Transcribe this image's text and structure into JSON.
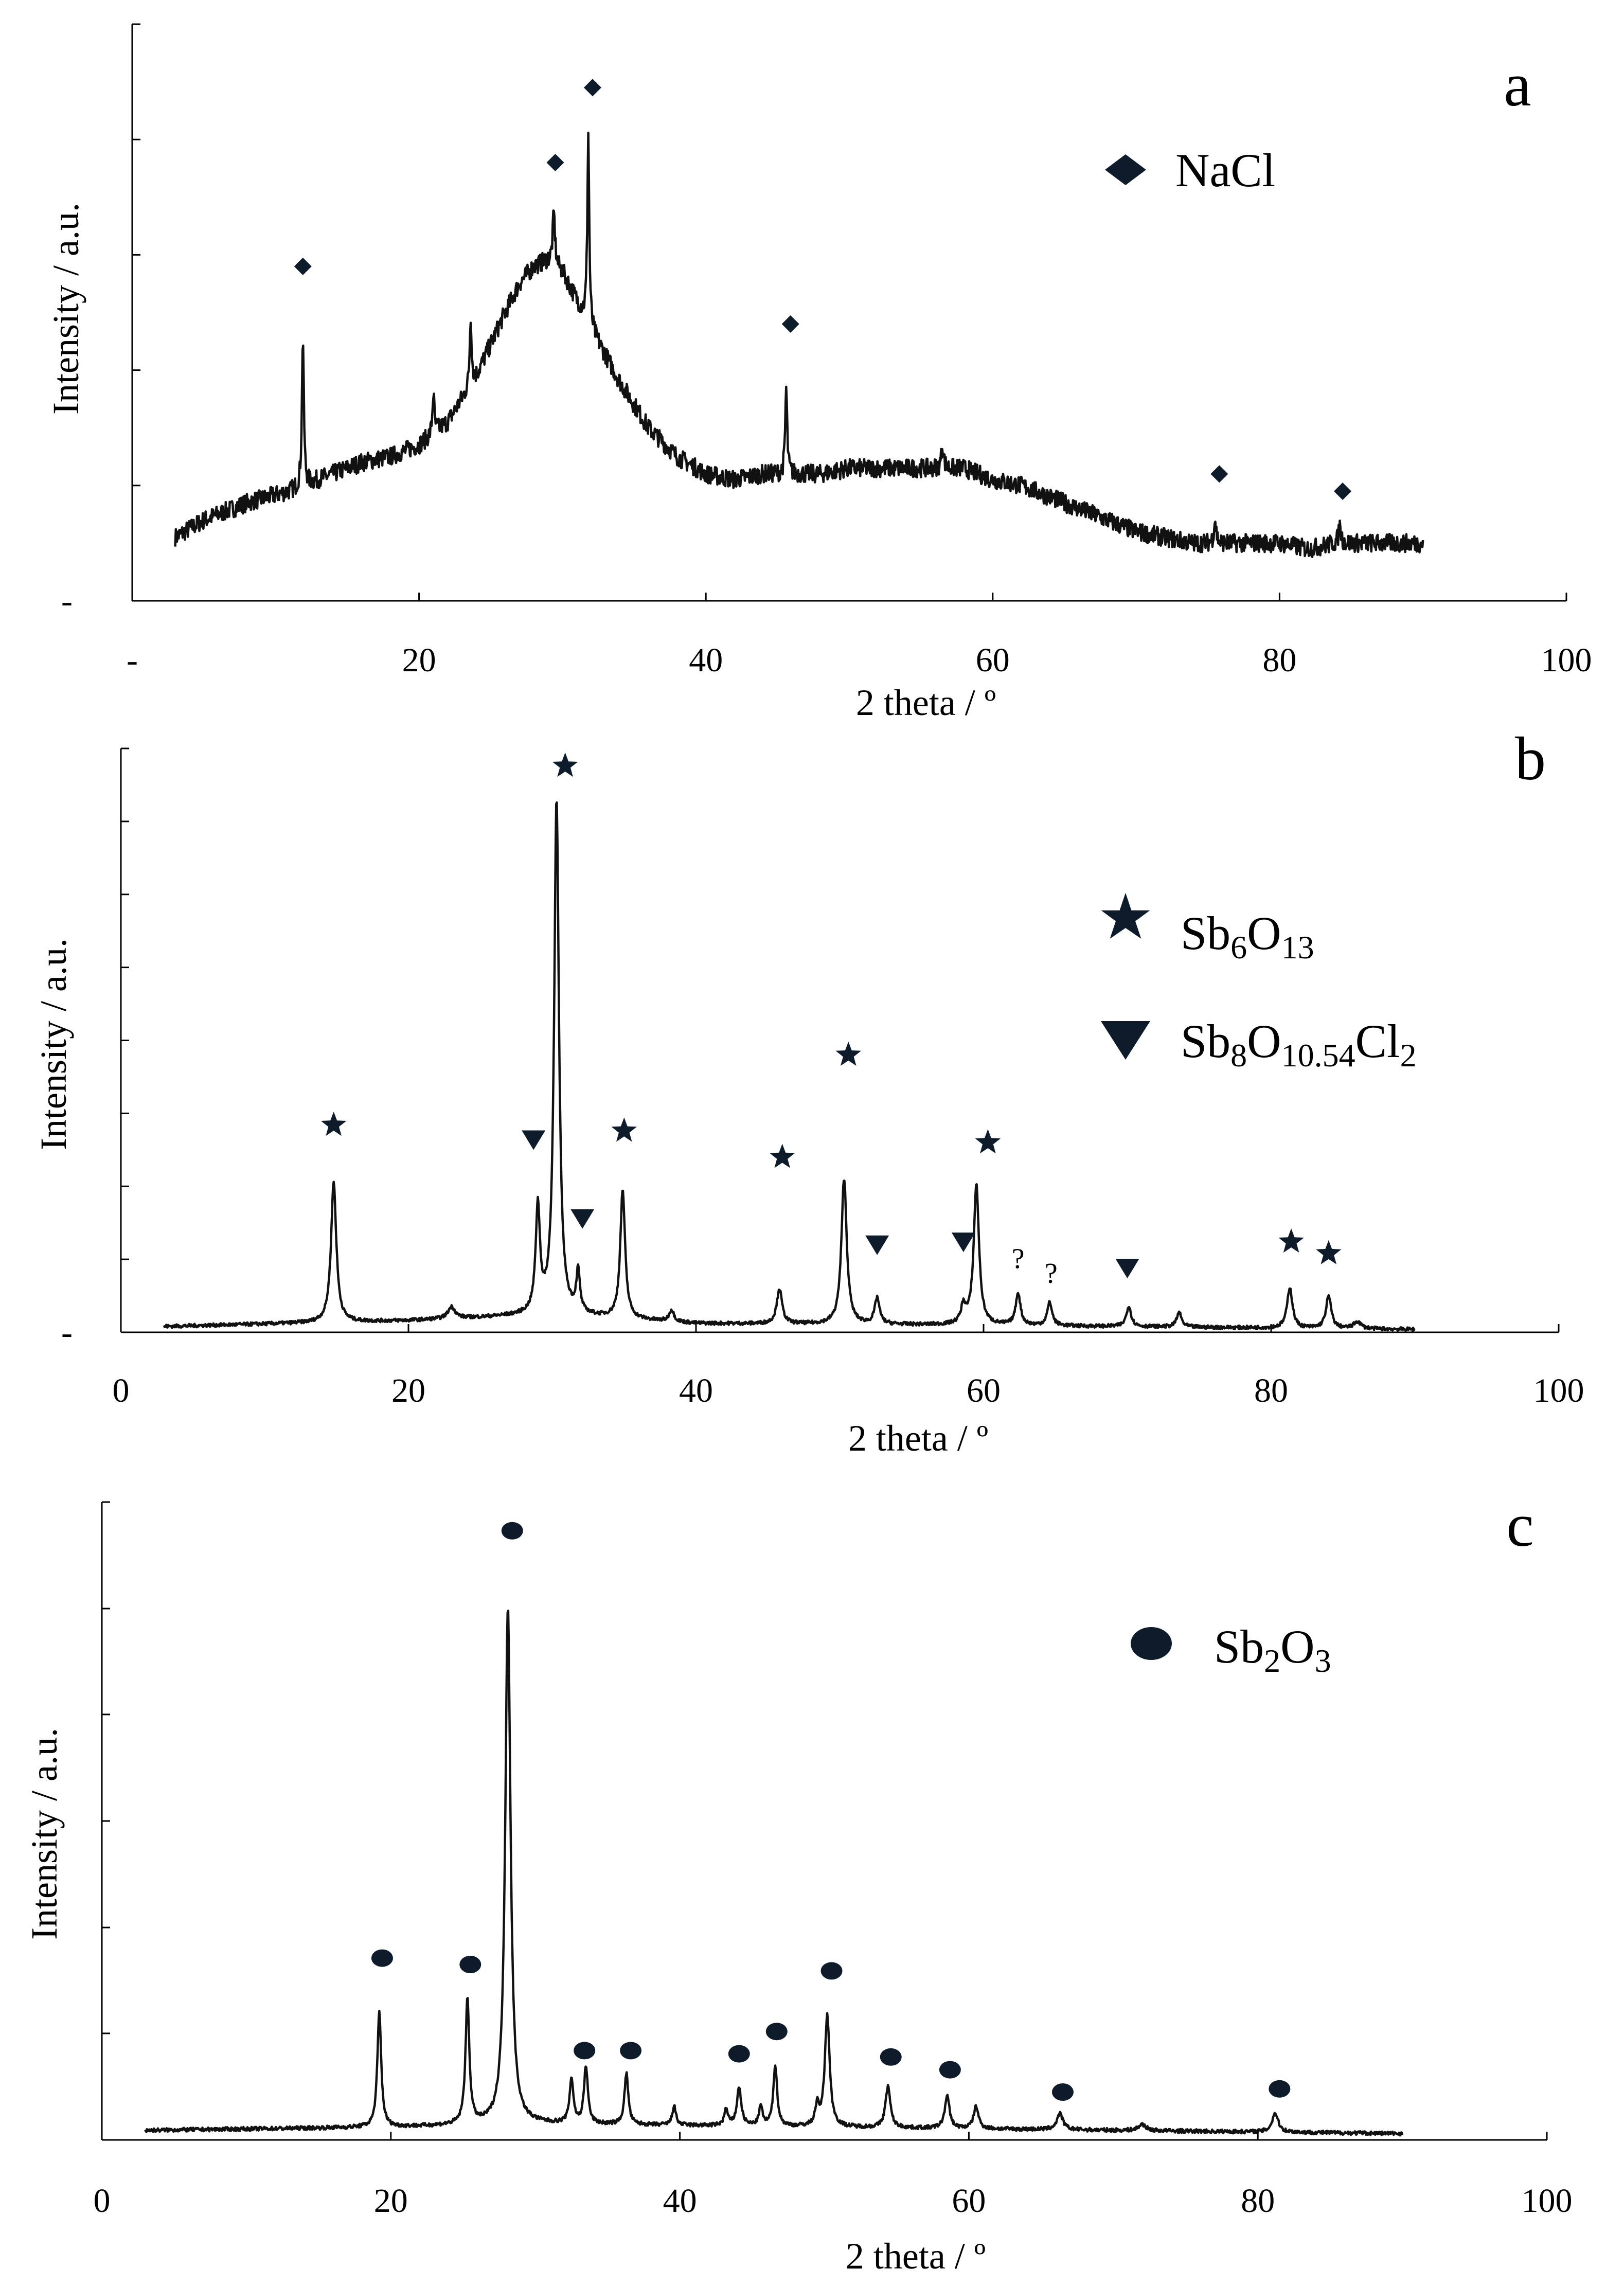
{
  "chart_data": [
    {
      "type": "line",
      "panel_label": "a",
      "xlabel": "2 theta / º",
      "ylabel": "Intensity / a.u.",
      "xlim": [
        0,
        100
      ],
      "ylim": [
        0,
        100
      ],
      "x_tick_labels": [
        "-",
        "20",
        "40",
        "60",
        "80",
        "100"
      ],
      "y_tick_labels": [
        "-"
      ],
      "y_ticks": [
        20,
        40,
        60,
        80,
        100
      ],
      "legend": [
        {
          "marker": "diamond",
          "label": "NaCl"
        }
      ],
      "baseline": [
        [
          3,
          11
        ],
        [
          5,
          14
        ],
        [
          8,
          17
        ],
        [
          11,
          19
        ],
        [
          12,
          20
        ],
        [
          14,
          22
        ],
        [
          16,
          24
        ],
        [
          18,
          25
        ],
        [
          20,
          27
        ],
        [
          22,
          31
        ],
        [
          24,
          39
        ],
        [
          26,
          50
        ],
        [
          27,
          55
        ],
        [
          28,
          58
        ],
        [
          29,
          59
        ],
        [
          30,
          57
        ],
        [
          31,
          52
        ],
        [
          32,
          47
        ],
        [
          34,
          38
        ],
        [
          36,
          30
        ],
        [
          38,
          25
        ],
        [
          40,
          22
        ],
        [
          42,
          21
        ],
        [
          44,
          22
        ],
        [
          46,
          22
        ],
        [
          48,
          22
        ],
        [
          50,
          23
        ],
        [
          52,
          23
        ],
        [
          54,
          23
        ],
        [
          56,
          23
        ],
        [
          58,
          23
        ],
        [
          60,
          21
        ],
        [
          62,
          20
        ],
        [
          64,
          18
        ],
        [
          66,
          16
        ],
        [
          68,
          14
        ],
        [
          70,
          12
        ],
        [
          72,
          11
        ],
        [
          74,
          10
        ],
        [
          76,
          10
        ],
        [
          78,
          10
        ],
        [
          80,
          10
        ],
        [
          82,
          9
        ],
        [
          84,
          10
        ],
        [
          86,
          10
        ],
        [
          88,
          10
        ],
        [
          90,
          10
        ]
      ],
      "peaks": [
        [
          11.9,
          26,
          0.08
        ],
        [
          21,
          7,
          0.08
        ],
        [
          23.6,
          12,
          0.08
        ],
        [
          29.4,
          9,
          0.1
        ],
        [
          31.8,
          33,
          0.08
        ],
        [
          45.6,
          15,
          0.08
        ],
        [
          56.5,
          4,
          0.1
        ],
        [
          75.5,
          4,
          0.1
        ],
        [
          84.2,
          3,
          0.1
        ]
      ],
      "noise": 1.6,
      "markers": [
        {
          "symbol": "diamond",
          "x": 11.9,
          "y": 58
        },
        {
          "symbol": "diamond",
          "x": 29.5,
          "y": 76
        },
        {
          "symbol": "diamond",
          "x": 32.1,
          "y": 89
        },
        {
          "symbol": "diamond",
          "x": 45.9,
          "y": 48
        },
        {
          "symbol": "diamond",
          "x": 75.8,
          "y": 22
        },
        {
          "symbol": "diamond",
          "x": 84.4,
          "y": 19
        }
      ]
    },
    {
      "type": "line",
      "panel_label": "b",
      "xlabel": "2 theta / º",
      "ylabel": "Intensity / a.u.",
      "xlim": [
        0,
        100
      ],
      "ylim": [
        0,
        100
      ],
      "x_tick_labels": [
        "0",
        "20",
        "40",
        "60",
        "80",
        "100"
      ],
      "y_tick_labels": [
        "-"
      ],
      "y_ticks": [
        12.5,
        25,
        37.5,
        50,
        62.5,
        75,
        87.5,
        100
      ],
      "legend": [
        {
          "marker": "star",
          "label": "Sb",
          "sub1": "6",
          "mid": "O",
          "sub2": "13",
          "tail": "",
          "sub3": ""
        },
        {
          "marker": "triangle-down",
          "label": "Sb",
          "sub1": "8",
          "mid": "O",
          "sub2": "10.54",
          "tail": "Cl",
          "sub3": "2"
        }
      ],
      "baseline": [
        [
          3,
          1
        ],
        [
          20,
          2
        ],
        [
          30,
          3
        ],
        [
          40,
          1.5
        ],
        [
          60,
          1.2
        ],
        [
          90,
          0.5
        ]
      ],
      "peaks": [
        [
          14.8,
          24,
          0.22
        ],
        [
          23,
          2,
          0.3
        ],
        [
          29,
          18,
          0.18
        ],
        [
          30.3,
          88,
          0.2
        ],
        [
          31.8,
          7,
          0.15
        ],
        [
          34.9,
          22,
          0.2
        ],
        [
          38.3,
          2,
          0.2
        ],
        [
          45.8,
          6,
          0.22
        ],
        [
          50.3,
          25,
          0.22
        ],
        [
          52.6,
          4.5,
          0.2
        ],
        [
          59.5,
          24,
          0.22
        ],
        [
          58.6,
          3,
          0.2
        ],
        [
          62.4,
          5.5,
          0.2
        ],
        [
          64.6,
          4,
          0.2
        ],
        [
          70.1,
          3.5,
          0.2
        ],
        [
          73.6,
          2.5,
          0.2
        ],
        [
          81.3,
          7,
          0.22
        ],
        [
          84,
          5.5,
          0.22
        ],
        [
          86,
          1.2,
          0.3
        ]
      ],
      "noise": 0.3,
      "markers": [
        {
          "symbol": "star",
          "x": 14.8,
          "y": 35.5
        },
        {
          "symbol": "star",
          "x": 30.9,
          "y": 97
        },
        {
          "symbol": "star",
          "x": 35.0,
          "y": 34.5
        },
        {
          "symbol": "star",
          "x": 46.0,
          "y": 30
        },
        {
          "symbol": "star",
          "x": 50.6,
          "y": 47.5
        },
        {
          "symbol": "star",
          "x": 60.3,
          "y": 32.5
        },
        {
          "symbol": "star",
          "x": 81.4,
          "y": 15.5
        },
        {
          "symbol": "star",
          "x": 84.0,
          "y": 13.5
        },
        {
          "symbol": "triangle-down",
          "x": 28.7,
          "y": 33
        },
        {
          "symbol": "triangle-down",
          "x": 32.1,
          "y": 19.5
        },
        {
          "symbol": "triangle-down",
          "x": 52.6,
          "y": 15
        },
        {
          "symbol": "triangle-down",
          "x": 58.6,
          "y": 15.5
        },
        {
          "symbol": "triangle-down",
          "x": 70.0,
          "y": 11
        }
      ],
      "unknown_labels": [
        {
          "text": "?",
          "x": 62.4,
          "y": 11
        },
        {
          "text": "?",
          "x": 64.7,
          "y": 8.5
        }
      ]
    },
    {
      "type": "line",
      "panel_label": "c",
      "xlabel": "2 theta / º",
      "ylabel": "Intensity / a.u.",
      "xlim": [
        0,
        100
      ],
      "ylim": [
        0,
        100
      ],
      "x_tick_labels": [
        "0",
        "20",
        "40",
        "60",
        "80",
        "100"
      ],
      "y_tick_labels": [],
      "y_ticks": [
        16.7,
        33.3,
        50,
        66.7,
        83.3,
        100
      ],
      "legend": [
        {
          "marker": "ellipse",
          "label": "Sb",
          "sub1": "2",
          "mid": "O",
          "sub2": "3",
          "tail": "",
          "sub3": ""
        }
      ],
      "baseline": [
        [
          3,
          1.5
        ],
        [
          20,
          2
        ],
        [
          30,
          2.5
        ],
        [
          50,
          2
        ],
        [
          70,
          1.5
        ],
        [
          90,
          1
        ]
      ],
      "peaks": [
        [
          19.2,
          18,
          0.16
        ],
        [
          25.3,
          19.5,
          0.16
        ],
        [
          28.1,
          81,
          0.22
        ],
        [
          32.5,
          7,
          0.16
        ],
        [
          33.5,
          9,
          0.16
        ],
        [
          36.3,
          8,
          0.16
        ],
        [
          39.6,
          3,
          0.15
        ],
        [
          43.2,
          2.5,
          0.15
        ],
        [
          44.1,
          6,
          0.18
        ],
        [
          45.6,
          3,
          0.15
        ],
        [
          46.6,
          9.5,
          0.16
        ],
        [
          49.5,
          3,
          0.16
        ],
        [
          50.2,
          17.5,
          0.2
        ],
        [
          54.4,
          6.5,
          0.2
        ],
        [
          58.5,
          5,
          0.2
        ],
        [
          60.5,
          3.5,
          0.2
        ],
        [
          66.3,
          2.5,
          0.25
        ],
        [
          72,
          1,
          0.3
        ],
        [
          81.2,
          3,
          0.25
        ]
      ],
      "noise": 0.3,
      "markers": [
        {
          "symbol": "ellipse",
          "x": 19.4,
          "y": 28.5
        },
        {
          "symbol": "ellipse",
          "x": 25.5,
          "y": 27.5
        },
        {
          "symbol": "ellipse",
          "x": 28.4,
          "y": 95.5
        },
        {
          "symbol": "ellipse",
          "x": 33.4,
          "y": 14
        },
        {
          "symbol": "ellipse",
          "x": 36.6,
          "y": 14
        },
        {
          "symbol": "ellipse",
          "x": 44.1,
          "y": 13.5
        },
        {
          "symbol": "ellipse",
          "x": 46.7,
          "y": 17
        },
        {
          "symbol": "ellipse",
          "x": 50.5,
          "y": 26.5
        },
        {
          "symbol": "ellipse",
          "x": 54.6,
          "y": 13
        },
        {
          "symbol": "ellipse",
          "x": 58.7,
          "y": 11
        },
        {
          "symbol": "ellipse",
          "x": 66.5,
          "y": 7.5
        },
        {
          "symbol": "ellipse",
          "x": 81.5,
          "y": 8
        }
      ]
    }
  ]
}
